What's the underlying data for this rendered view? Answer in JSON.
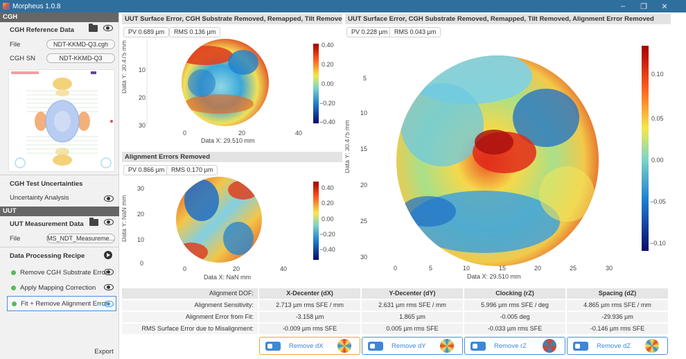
{
  "window": {
    "title": "Morpheus 1.0.8",
    "controls": [
      "–",
      "❐",
      "✕"
    ]
  },
  "left_panel": {
    "cgh_section": "CGH",
    "cgh_reference_title": "CGH Reference Data",
    "file_label": "File",
    "file_value": "NDT-KKMD-Q3.cgh",
    "cgh_sn_label": "CGH SN",
    "cgh_sn_value": "NDT-KKMD-Q3",
    "test_uncertainties_title": "CGH Test Uncertainties",
    "uncertainty_analysis": "Uncertainty Analysis",
    "uut_section": "UUT",
    "uut_measurement_title": "UUT Measurement Data",
    "uut_file_label": "File",
    "uut_file_value": "MS_NDT_Measureme...",
    "recipe_title": "Data Processing Recipe",
    "recipe_items": [
      "Remove CGH Substrate Error",
      "Apply Mapping Correction",
      "Fit + Remove Alignment Error"
    ],
    "export_label": "Export"
  },
  "plot_top_left": {
    "title": "UUT Surface Error, CGH Substrate Removed, Remapped, Tilt Removed",
    "pv": "PV 0.689 µm",
    "rms": "RMS 0.136 µm",
    "xlabel": "Data X: 29.510 mm",
    "ylabel": "Data Y: 30.475 mm",
    "xticks": [
      "0",
      "20",
      "40"
    ],
    "yticks": [
      "10",
      "20",
      "30"
    ],
    "colorbar_ticks": [
      "0.40",
      "0.20",
      "0.00",
      "−0.20",
      "−0.40"
    ]
  },
  "plot_bottom_left": {
    "title": "Alignment Errors Removed",
    "pv": "PV 0.866 µm",
    "rms": "RMS 0.170 µm",
    "xlabel": "Data X: NaN mm",
    "ylabel": "Data Y: NaN mm",
    "xticks": [
      "0",
      "20",
      "40"
    ],
    "yticks": [
      "30",
      "20",
      "10",
      "0"
    ],
    "colorbar_ticks": [
      "0.40",
      "0.20",
      "0.00",
      "−0.20",
      "−0.40"
    ]
  },
  "plot_right": {
    "title": "UUT Surface Error, CGH Substrate Removed, Remapped, Tilt Removed, Alignment Error Removed",
    "pv": "PV 0.228 µm",
    "rms": "RMS 0.043 µm",
    "xlabel": "Data X: 29.510 mm",
    "ylabel": "Data Y: 30.475 mm",
    "xticks": [
      "0",
      "5",
      "10",
      "15",
      "20",
      "25",
      "30"
    ],
    "yticks": [
      "5",
      "10",
      "15",
      "20",
      "25",
      "30"
    ],
    "colorbar_ticks": [
      "0.10",
      "0.05",
      "0.00",
      "−0.05",
      "−0.10"
    ]
  },
  "alignment_table": {
    "header_label": "Alignment DOF:",
    "columns": [
      "X-Decenter (dX)",
      "Y-Decenter (dY)",
      "Clocking (rZ)",
      "Spacing (dZ)"
    ],
    "rows": [
      {
        "label": "Alignment Sensitivity:",
        "values": [
          "2.713 µm rms SFE / mm",
          "2.631 µm rms SFE / mm",
          "5.996 µm rms SFE / deg",
          "4.865 µm rms SFE / mm"
        ]
      },
      {
        "label": "Alignment Error from Fit:",
        "values": [
          "-3.158 µm",
          "1.865 µm",
          "-0.005 deg",
          "-29.936 µm"
        ]
      },
      {
        "label": "RMS Surface Error due to Misalignment:",
        "values": [
          "-0.009 µm rms SFE",
          "0.005 µm rms SFE",
          "-0.033 µm rms SFE",
          "-0.146 µm rms SFE"
        ]
      }
    ],
    "remove_buttons": [
      "Remove dX",
      "Remove dY",
      "Remove rZ",
      "Remove dZ"
    ]
  }
}
